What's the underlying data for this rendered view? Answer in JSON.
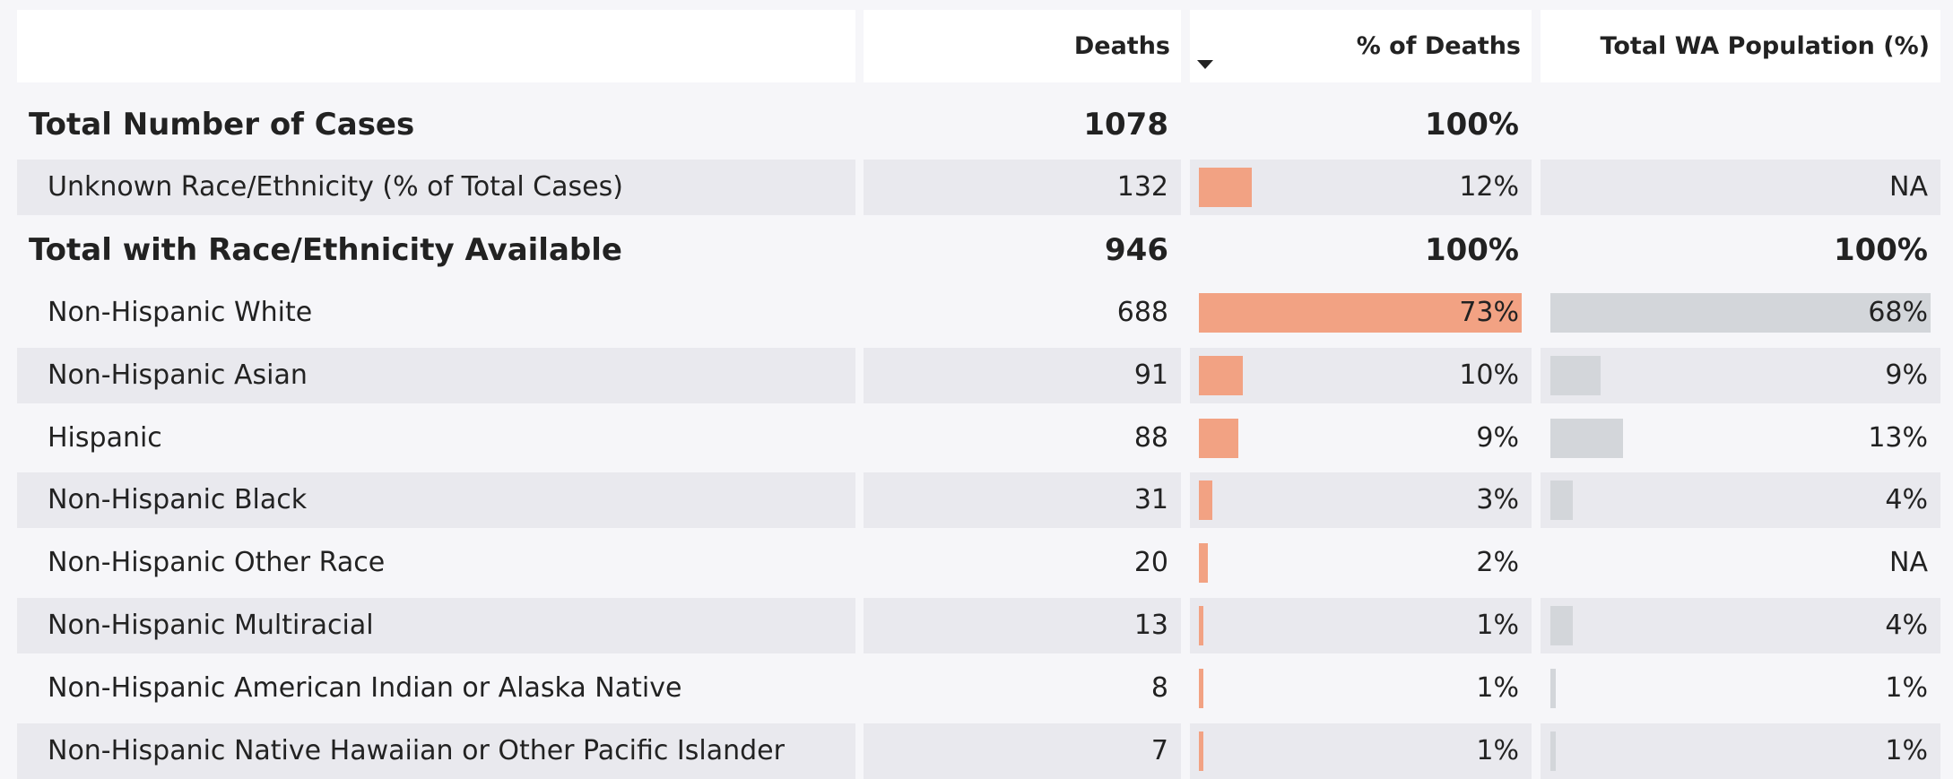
{
  "table": {
    "columns": [
      "Deaths",
      "% of Deaths",
      "Total WA Population (%)"
    ],
    "sorted_column": 1,
    "bar_colors": [
      "#f2a283",
      "#d3d6da"
    ],
    "rows": [
      {
        "label": "Total Number of Cases",
        "bold": true,
        "deaths": 1078,
        "pct_deaths": {
          "value": 100,
          "label": "100%"
        }
      },
      {
        "label": "Unknown Race/Ethnicity (% of Total Cases)",
        "deaths": 132,
        "pct_deaths": {
          "value": 12,
          "label": "12%"
        },
        "wa_population": "NA"
      },
      {
        "label": "Total with Race/Ethnicity Available",
        "bold": true,
        "deaths": 946,
        "pct_deaths": {
          "value": 100,
          "label": "100%"
        },
        "wa_population": {
          "value": 100,
          "label": "100%"
        }
      },
      {
        "label": "Non-Hispanic White",
        "deaths": 688,
        "pct_deaths": {
          "value": 73,
          "label": "73%"
        },
        "wa_population": {
          "value": 68,
          "label": "68%"
        }
      },
      {
        "label": "Non-Hispanic Asian",
        "deaths": 91,
        "pct_deaths": {
          "value": 10,
          "label": "10%"
        },
        "wa_population": {
          "value": 9,
          "label": "9%"
        }
      },
      {
        "label": "Hispanic",
        "deaths": 88,
        "pct_deaths": {
          "value": 9,
          "label": "9%"
        },
        "wa_population": {
          "value": 13,
          "label": "13%"
        }
      },
      {
        "label": "Non-Hispanic Black",
        "deaths": 31,
        "pct_deaths": {
          "value": 3,
          "label": "3%"
        },
        "wa_population": {
          "value": 4,
          "label": "4%"
        }
      },
      {
        "label": "Non-Hispanic Other Race",
        "deaths": 20,
        "pct_deaths": {
          "value": 2,
          "label": "2%"
        },
        "wa_population": "NA"
      },
      {
        "label": "Non-Hispanic Multiracial",
        "deaths": 13,
        "pct_deaths": {
          "value": 1,
          "label": "1%"
        },
        "wa_population": {
          "value": 4,
          "label": "4%"
        }
      },
      {
        "label": "Non-Hispanic American Indian or Alaska Native",
        "deaths": 8,
        "pct_deaths": {
          "value": 1,
          "label": "1%"
        },
        "wa_population": {
          "value": 1,
          "label": "1%"
        }
      },
      {
        "label": "Non-Hispanic Native Hawaiian or Other Pacific Islander",
        "deaths": 7,
        "pct_deaths": {
          "value": 1,
          "label": "1%"
        },
        "wa_population": {
          "value": 1,
          "label": "1%"
        }
      }
    ]
  }
}
